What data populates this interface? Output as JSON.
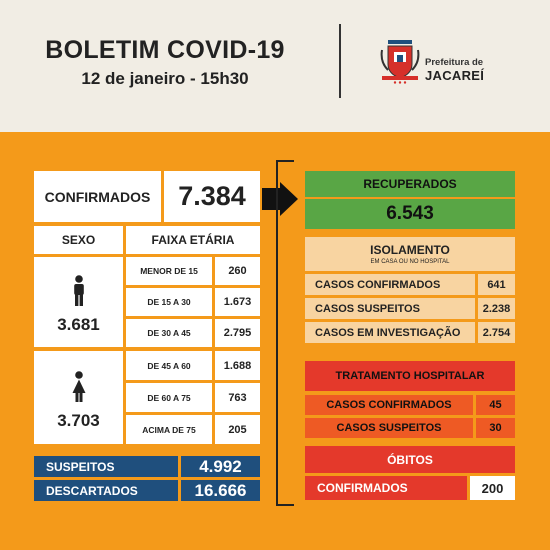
{
  "header": {
    "title": "BOLETIM COVID-19",
    "date": "12 de janeiro - 15h30",
    "org_line1": "Prefeitura de",
    "org_line2": "JACAREÍ"
  },
  "left": {
    "confirmed_label": "CONFIRMADOS",
    "confirmed_value": "7.384",
    "sex_label": "SEXO",
    "age_label": "FAIXA ETÁRIA",
    "male_total": "3.681",
    "female_total": "3.703",
    "ages": [
      {
        "label": "MENOR DE 15",
        "value": "260"
      },
      {
        "label": "DE 15 A 30",
        "value": "1.673"
      },
      {
        "label": "DE 30 A 45",
        "value": "2.795"
      },
      {
        "label": "DE 45 A 60",
        "value": "1.688"
      },
      {
        "label": "DE 60 A 75",
        "value": "763"
      },
      {
        "label": "ACIMA DE 75",
        "value": "205"
      }
    ],
    "suspects_label": "SUSPEITOS",
    "suspects_value": "4.992",
    "discarded_label": "DESCARTADOS",
    "discarded_value": "16.666"
  },
  "right": {
    "recovered_label": "RECUPERADOS",
    "recovered_value": "6.543",
    "isolation_title": "ISOLAMENTO",
    "isolation_sub": "EM CASA OU NO HOSPITAL",
    "isolation_rows": [
      {
        "label": "CASOS CONFIRMADOS",
        "value": "641"
      },
      {
        "label": "CASOS SUSPEITOS",
        "value": "2.238"
      },
      {
        "label": "CASOS EM INVESTIGAÇÃO",
        "value": "2.754"
      }
    ],
    "hospital_title": "TRATAMENTO HOSPITALAR",
    "hospital_rows": [
      {
        "label": "CASOS CONFIRMADOS",
        "value": "45"
      },
      {
        "label": "CASOS SUSPEITOS",
        "value": "30"
      }
    ],
    "deaths_title": "ÓBITOS",
    "deaths_label": "CONFIRMADOS",
    "deaths_value": "200"
  },
  "colors": {
    "orange": "#f49a1a",
    "navy": "#1f4f7d",
    "green": "#59a645",
    "peach": "#f8d4a1",
    "red": "#e4392b"
  },
  "icons": [
    "crest-icon",
    "male-person-icon",
    "female-person-icon",
    "arrow-right-icon"
  ]
}
